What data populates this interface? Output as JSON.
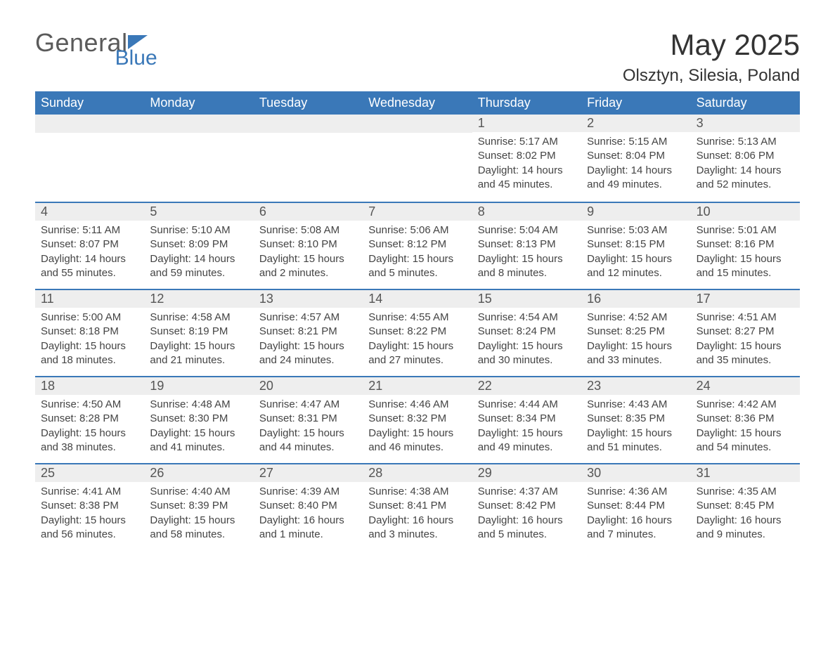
{
  "logo": {
    "main": "General",
    "accent": "Blue",
    "shape_color": "#3a78b8"
  },
  "title": {
    "month": "May 2025",
    "location": "Olsztyn, Silesia, Poland"
  },
  "colors": {
    "header_bg": "#3a78b8",
    "header_text": "#ffffff",
    "row_divider": "#3a78b8",
    "daynum_bg": "#eeeeee",
    "daynum_text": "#555555",
    "body_text": "#444444",
    "title_text": "#333333",
    "logo_gray": "#5a5a5a",
    "logo_blue": "#3a78b8",
    "page_bg": "#ffffff"
  },
  "typography": {
    "title_fontsize": 42,
    "location_fontsize": 24,
    "dow_fontsize": 18,
    "daynum_fontsize": 18,
    "body_fontsize": 15,
    "font_family": "Arial"
  },
  "layout": {
    "columns": 7,
    "rows": 5,
    "cell_min_height": 124
  },
  "days_of_week": [
    "Sunday",
    "Monday",
    "Tuesday",
    "Wednesday",
    "Thursday",
    "Friday",
    "Saturday"
  ],
  "weeks": [
    [
      null,
      null,
      null,
      null,
      {
        "n": "1",
        "sunrise": "Sunrise: 5:17 AM",
        "sunset": "Sunset: 8:02 PM",
        "daylight": "Daylight: 14 hours and 45 minutes."
      },
      {
        "n": "2",
        "sunrise": "Sunrise: 5:15 AM",
        "sunset": "Sunset: 8:04 PM",
        "daylight": "Daylight: 14 hours and 49 minutes."
      },
      {
        "n": "3",
        "sunrise": "Sunrise: 5:13 AM",
        "sunset": "Sunset: 8:06 PM",
        "daylight": "Daylight: 14 hours and 52 minutes."
      }
    ],
    [
      {
        "n": "4",
        "sunrise": "Sunrise: 5:11 AM",
        "sunset": "Sunset: 8:07 PM",
        "daylight": "Daylight: 14 hours and 55 minutes."
      },
      {
        "n": "5",
        "sunrise": "Sunrise: 5:10 AM",
        "sunset": "Sunset: 8:09 PM",
        "daylight": "Daylight: 14 hours and 59 minutes."
      },
      {
        "n": "6",
        "sunrise": "Sunrise: 5:08 AM",
        "sunset": "Sunset: 8:10 PM",
        "daylight": "Daylight: 15 hours and 2 minutes."
      },
      {
        "n": "7",
        "sunrise": "Sunrise: 5:06 AM",
        "sunset": "Sunset: 8:12 PM",
        "daylight": "Daylight: 15 hours and 5 minutes."
      },
      {
        "n": "8",
        "sunrise": "Sunrise: 5:04 AM",
        "sunset": "Sunset: 8:13 PM",
        "daylight": "Daylight: 15 hours and 8 minutes."
      },
      {
        "n": "9",
        "sunrise": "Sunrise: 5:03 AM",
        "sunset": "Sunset: 8:15 PM",
        "daylight": "Daylight: 15 hours and 12 minutes."
      },
      {
        "n": "10",
        "sunrise": "Sunrise: 5:01 AM",
        "sunset": "Sunset: 8:16 PM",
        "daylight": "Daylight: 15 hours and 15 minutes."
      }
    ],
    [
      {
        "n": "11",
        "sunrise": "Sunrise: 5:00 AM",
        "sunset": "Sunset: 8:18 PM",
        "daylight": "Daylight: 15 hours and 18 minutes."
      },
      {
        "n": "12",
        "sunrise": "Sunrise: 4:58 AM",
        "sunset": "Sunset: 8:19 PM",
        "daylight": "Daylight: 15 hours and 21 minutes."
      },
      {
        "n": "13",
        "sunrise": "Sunrise: 4:57 AM",
        "sunset": "Sunset: 8:21 PM",
        "daylight": "Daylight: 15 hours and 24 minutes."
      },
      {
        "n": "14",
        "sunrise": "Sunrise: 4:55 AM",
        "sunset": "Sunset: 8:22 PM",
        "daylight": "Daylight: 15 hours and 27 minutes."
      },
      {
        "n": "15",
        "sunrise": "Sunrise: 4:54 AM",
        "sunset": "Sunset: 8:24 PM",
        "daylight": "Daylight: 15 hours and 30 minutes."
      },
      {
        "n": "16",
        "sunrise": "Sunrise: 4:52 AM",
        "sunset": "Sunset: 8:25 PM",
        "daylight": "Daylight: 15 hours and 33 minutes."
      },
      {
        "n": "17",
        "sunrise": "Sunrise: 4:51 AM",
        "sunset": "Sunset: 8:27 PM",
        "daylight": "Daylight: 15 hours and 35 minutes."
      }
    ],
    [
      {
        "n": "18",
        "sunrise": "Sunrise: 4:50 AM",
        "sunset": "Sunset: 8:28 PM",
        "daylight": "Daylight: 15 hours and 38 minutes."
      },
      {
        "n": "19",
        "sunrise": "Sunrise: 4:48 AM",
        "sunset": "Sunset: 8:30 PM",
        "daylight": "Daylight: 15 hours and 41 minutes."
      },
      {
        "n": "20",
        "sunrise": "Sunrise: 4:47 AM",
        "sunset": "Sunset: 8:31 PM",
        "daylight": "Daylight: 15 hours and 44 minutes."
      },
      {
        "n": "21",
        "sunrise": "Sunrise: 4:46 AM",
        "sunset": "Sunset: 8:32 PM",
        "daylight": "Daylight: 15 hours and 46 minutes."
      },
      {
        "n": "22",
        "sunrise": "Sunrise: 4:44 AM",
        "sunset": "Sunset: 8:34 PM",
        "daylight": "Daylight: 15 hours and 49 minutes."
      },
      {
        "n": "23",
        "sunrise": "Sunrise: 4:43 AM",
        "sunset": "Sunset: 8:35 PM",
        "daylight": "Daylight: 15 hours and 51 minutes."
      },
      {
        "n": "24",
        "sunrise": "Sunrise: 4:42 AM",
        "sunset": "Sunset: 8:36 PM",
        "daylight": "Daylight: 15 hours and 54 minutes."
      }
    ],
    [
      {
        "n": "25",
        "sunrise": "Sunrise: 4:41 AM",
        "sunset": "Sunset: 8:38 PM",
        "daylight": "Daylight: 15 hours and 56 minutes."
      },
      {
        "n": "26",
        "sunrise": "Sunrise: 4:40 AM",
        "sunset": "Sunset: 8:39 PM",
        "daylight": "Daylight: 15 hours and 58 minutes."
      },
      {
        "n": "27",
        "sunrise": "Sunrise: 4:39 AM",
        "sunset": "Sunset: 8:40 PM",
        "daylight": "Daylight: 16 hours and 1 minute."
      },
      {
        "n": "28",
        "sunrise": "Sunrise: 4:38 AM",
        "sunset": "Sunset: 8:41 PM",
        "daylight": "Daylight: 16 hours and 3 minutes."
      },
      {
        "n": "29",
        "sunrise": "Sunrise: 4:37 AM",
        "sunset": "Sunset: 8:42 PM",
        "daylight": "Daylight: 16 hours and 5 minutes."
      },
      {
        "n": "30",
        "sunrise": "Sunrise: 4:36 AM",
        "sunset": "Sunset: 8:44 PM",
        "daylight": "Daylight: 16 hours and 7 minutes."
      },
      {
        "n": "31",
        "sunrise": "Sunrise: 4:35 AM",
        "sunset": "Sunset: 8:45 PM",
        "daylight": "Daylight: 16 hours and 9 minutes."
      }
    ]
  ]
}
